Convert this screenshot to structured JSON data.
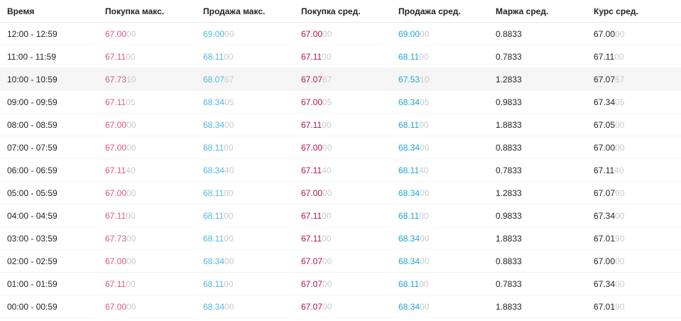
{
  "colors": {
    "buy_max": "#e0557a",
    "sell_max": "#4bb8de",
    "buy_avg": "#b0124a",
    "sell_avg": "#1aa6d6",
    "faint_digits": "#c9c9c9",
    "highlight_row": "#f5f5f5"
  },
  "headers": [
    "Время",
    "Покупка макс.",
    "Продажа макс.",
    "Покупка сред.",
    "Продажа сред.",
    "Маржа сред.",
    "Курс сред."
  ],
  "rows": [
    {
      "time": "12:00 - 12:59",
      "buy_max": [
        "67.00",
        "00"
      ],
      "sell_max": [
        "69.00",
        "00"
      ],
      "buy_avg": [
        "67.00",
        "00"
      ],
      "sell_avg": [
        "69.00",
        "00"
      ],
      "margin": "0.8833",
      "course": [
        "67.00",
        "00"
      ],
      "highlighted": false
    },
    {
      "time": "11:00 - 11:59",
      "buy_max": [
        "67.11",
        "00"
      ],
      "sell_max": [
        "68.11",
        "00"
      ],
      "buy_avg": [
        "67.11",
        "00"
      ],
      "sell_avg": [
        "68.11",
        "00"
      ],
      "margin": "0.7833",
      "course": [
        "67.11",
        "00"
      ],
      "highlighted": false
    },
    {
      "time": "10:00 - 10:59",
      "buy_max": [
        "67.73",
        "10"
      ],
      "sell_max": [
        "68.07",
        "67"
      ],
      "buy_avg": [
        "67.07",
        "67"
      ],
      "sell_avg": [
        "67.53",
        "10"
      ],
      "margin": "1.2833",
      "course": [
        "67.07",
        "67"
      ],
      "highlighted": true
    },
    {
      "time": "09:00 - 09:59",
      "buy_max": [
        "67.11",
        "05"
      ],
      "sell_max": [
        "68.34",
        "05"
      ],
      "buy_avg": [
        "67.00",
        "05"
      ],
      "sell_avg": [
        "68.34",
        "05"
      ],
      "margin": "0.9833",
      "course": [
        "67.34",
        "05"
      ],
      "highlighted": false
    },
    {
      "time": "08:00 - 08:59",
      "buy_max": [
        "67.00",
        "00"
      ],
      "sell_max": [
        "68.34",
        "00"
      ],
      "buy_avg": [
        "67.11",
        "00"
      ],
      "sell_avg": [
        "68.11",
        "00"
      ],
      "margin": "1.8833",
      "course": [
        "67.05",
        "00"
      ],
      "highlighted": false
    },
    {
      "time": "07:00 - 07:59",
      "buy_max": [
        "67.00",
        "00"
      ],
      "sell_max": [
        "68.11",
        "00"
      ],
      "buy_avg": [
        "67.00",
        "00"
      ],
      "sell_avg": [
        "68.34",
        "00"
      ],
      "margin": "0.8833",
      "course": [
        "67.00",
        "00"
      ],
      "highlighted": false
    },
    {
      "time": "06:00 - 06:59",
      "buy_max": [
        "67.11",
        "40"
      ],
      "sell_max": [
        "68.34",
        "40"
      ],
      "buy_avg": [
        "67.11",
        "40"
      ],
      "sell_avg": [
        "68.11",
        "40"
      ],
      "margin": "0.7833",
      "course": [
        "67.11",
        "40"
      ],
      "highlighted": false
    },
    {
      "time": "05:00 - 05:59",
      "buy_max": [
        "67.00",
        "00"
      ],
      "sell_max": [
        "68.11",
        "00"
      ],
      "buy_avg": [
        "67.00",
        "00"
      ],
      "sell_avg": [
        "68.34",
        "00"
      ],
      "margin": "1.2833",
      "course": [
        "67.07",
        "90"
      ],
      "highlighted": false
    },
    {
      "time": "04:00 - 04:59",
      "buy_max": [
        "67.11",
        "00"
      ],
      "sell_max": [
        "68.11",
        "00"
      ],
      "buy_avg": [
        "67.11",
        "00"
      ],
      "sell_avg": [
        "68.11",
        "00"
      ],
      "margin": "0.9833",
      "course": [
        "67.34",
        "00"
      ],
      "highlighted": false
    },
    {
      "time": "03:00 - 03:59",
      "buy_max": [
        "67.73",
        "00"
      ],
      "sell_max": [
        "68.11",
        "00"
      ],
      "buy_avg": [
        "67.11",
        "00"
      ],
      "sell_avg": [
        "68.34",
        "00"
      ],
      "margin": "1.8833",
      "course": [
        "67.01",
        "90"
      ],
      "highlighted": false
    },
    {
      "time": "02:00 - 02:59",
      "buy_max": [
        "67.00",
        "00"
      ],
      "sell_max": [
        "68.34",
        "00"
      ],
      "buy_avg": [
        "67.07",
        "00"
      ],
      "sell_avg": [
        "68.34",
        "00"
      ],
      "margin": "0.8833",
      "course": [
        "67.00",
        "00"
      ],
      "highlighted": false
    },
    {
      "time": "01:00 - 01:59",
      "buy_max": [
        "67.11",
        "00"
      ],
      "sell_max": [
        "68.11",
        "00"
      ],
      "buy_avg": [
        "67.07",
        "00"
      ],
      "sell_avg": [
        "68.11",
        "00"
      ],
      "margin": "0.7833",
      "course": [
        "67.34",
        "00"
      ],
      "highlighted": false
    },
    {
      "time": "00:00 - 00:59",
      "buy_max": [
        "67.00",
        "00"
      ],
      "sell_max": [
        "68.34",
        "00"
      ],
      "buy_avg": [
        "67.07",
        "00"
      ],
      "sell_avg": [
        "68.34",
        "00"
      ],
      "margin": "1.8833",
      "course": [
        "67.01",
        "90"
      ],
      "highlighted": false
    }
  ]
}
